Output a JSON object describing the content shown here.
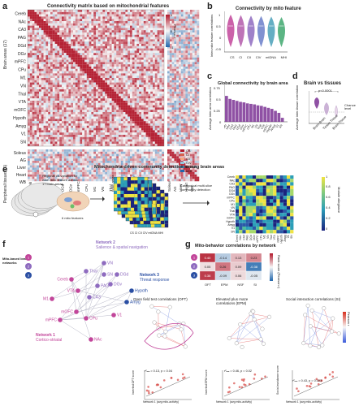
{
  "panel_a": {
    "letter": "a",
    "title": "Connectivity matrix based on mitochondrial features",
    "brain_group": "Brain areas (17)",
    "periph_group": "Peripheral tissues (5)",
    "row_labels": [
      "Cereb",
      "NAc",
      "CA3",
      "PAG",
      "DGd",
      "DGv",
      "mPFC",
      "CPu",
      "M1",
      "VN",
      "Thal",
      "VTA",
      "mOFC",
      "Hypoth",
      "Amyg",
      "V1",
      "SN"
    ],
    "col_labels": [
      "Cereb",
      "NAc",
      "CA3",
      "PAG",
      "DGd",
      "DGv",
      "mPFC",
      "CPu",
      "M1",
      "VN",
      "Thal",
      "VTA",
      "mOFC",
      "Hypoth",
      "Amyg",
      "V1",
      "SN"
    ],
    "periph_row_labels": [
      "Soleus",
      "AG",
      "Liver",
      "Heart",
      "WB"
    ],
    "periph_col_labels": [
      "Soleus",
      "AG",
      "Liver",
      "Heart",
      "WB"
    ],
    "feature_legend": [
      "CS",
      "CI",
      "CII",
      "CIV",
      "mtDNA",
      "MHI"
    ],
    "colorbar_label": "Pearson r",
    "colorbar_ticks": [
      "1",
      "0",
      "-1"
    ]
  },
  "panel_b": {
    "letter": "b",
    "title": "Connectivity by mito feature",
    "ylabel": "Inter-mito feature correlations",
    "categories": [
      "CS",
      "CI",
      "CII",
      "CIV",
      "mtDNA",
      "MHI"
    ],
    "ticks": [
      "1",
      "0.5",
      "0",
      "-0.5"
    ]
  },
  "panel_c": {
    "letter": "c",
    "title": "Global connectivity by brain area",
    "ylabel": "Average inter-area correlation",
    "ticks": [
      "0.75",
      "0.5",
      "0.25",
      "0"
    ]
  },
  "panel_d": {
    "letter": "d",
    "title": "Brain vs tissues",
    "ylabel": "Average inter-tissue correlation",
    "pvalue": "p<0.0001",
    "chance": "Chance level",
    "categories": [
      "Brain-Brain",
      "Tissue-Tissue",
      "Brain-Tissue"
    ],
    "ticks": [
      "1",
      "0.5",
      "0",
      "-0.5"
    ]
  },
  "panel_e": {
    "letter": "e",
    "title": "Mitochondria-driven community detection among brain areas",
    "text1": "Regional co-variation for each mito feature across 17 brain areas",
    "text2": "6 mito features",
    "brain_areas": "Brain areas",
    "axis_features": "CS CI CII CIV mtDNA MHI",
    "arrow_text": "Categorical multi-slice community detection",
    "ylabel": "Module allegiance",
    "colorbar_ticks": [
      "1",
      "0.8",
      "0.6",
      "0.4",
      "0.2",
      "0"
    ]
  },
  "panel_f": {
    "letter": "f",
    "legend_title": "Mito-based brain networks",
    "net1_title": "Network 1",
    "net1_sub": "Cortico-striatal",
    "net2_title": "Network 2",
    "net2_sub": "Salience & spatial navigation",
    "net3_title": "Network 3",
    "net3_sub": "Threat response",
    "nodes": [
      "Cereb",
      "Thal",
      "VN",
      "SN",
      "DGd",
      "DGv",
      "PAG",
      "CA3",
      "Hypoth",
      "Amyg",
      "VTA",
      "M1",
      "mOFC",
      "CPu",
      "mPFC",
      "V1",
      "NAc"
    ]
  },
  "panel_g": {
    "letter": "g",
    "title": "Mito-behavior correlations by network",
    "rows": [
      "1",
      "2",
      "3"
    ],
    "cols": [
      "OFT",
      "EPM",
      "NSF",
      "SI"
    ],
    "values": [
      [
        0.4,
        -0.14,
        0.13,
        0.23
      ],
      [
        0.05,
        0.26,
        0.09,
        -0.38
      ],
      [
        0.38,
        -0.09,
        0.06,
        -0.05
      ]
    ],
    "value_text": [
      [
        "0.40",
        "-0.14",
        "0.13",
        "0.23"
      ],
      [
        "0.05",
        "0.26",
        "0.09",
        "-0.38"
      ],
      [
        "0.38",
        "-0.09",
        "0.06",
        "-0.05"
      ]
    ],
    "colorbar_label": "Rank score (Pearson r)",
    "sub1_title": "Open field test correlations (OFT)",
    "sub2_title": "Elevated plus maze correlations (EPM)",
    "sub3_title": "Social interaction correlations (SI)",
    "sub1_ylabel": "Inverted OFT score",
    "sub2_ylabel": "Inverted EPM score",
    "sub3_ylabel": "Social avoidance score",
    "sub1_xlabel": "Network 1 (avg mito-activity)",
    "sub2_xlabel": "Network 1 (avg mito-activity)",
    "sub3_xlabel": "Network 1 (avg mito-activity)",
    "sub1_stat": "r²ₘₐ = 0.13, p = 0.04",
    "sub2_stat": "r²ₘₐ = 0.46, p = 0.02",
    "sub3_stat": "r²ₘₐ = 0.43, p = 0.003",
    "colorbar2_label": "Pearson r"
  }
}
